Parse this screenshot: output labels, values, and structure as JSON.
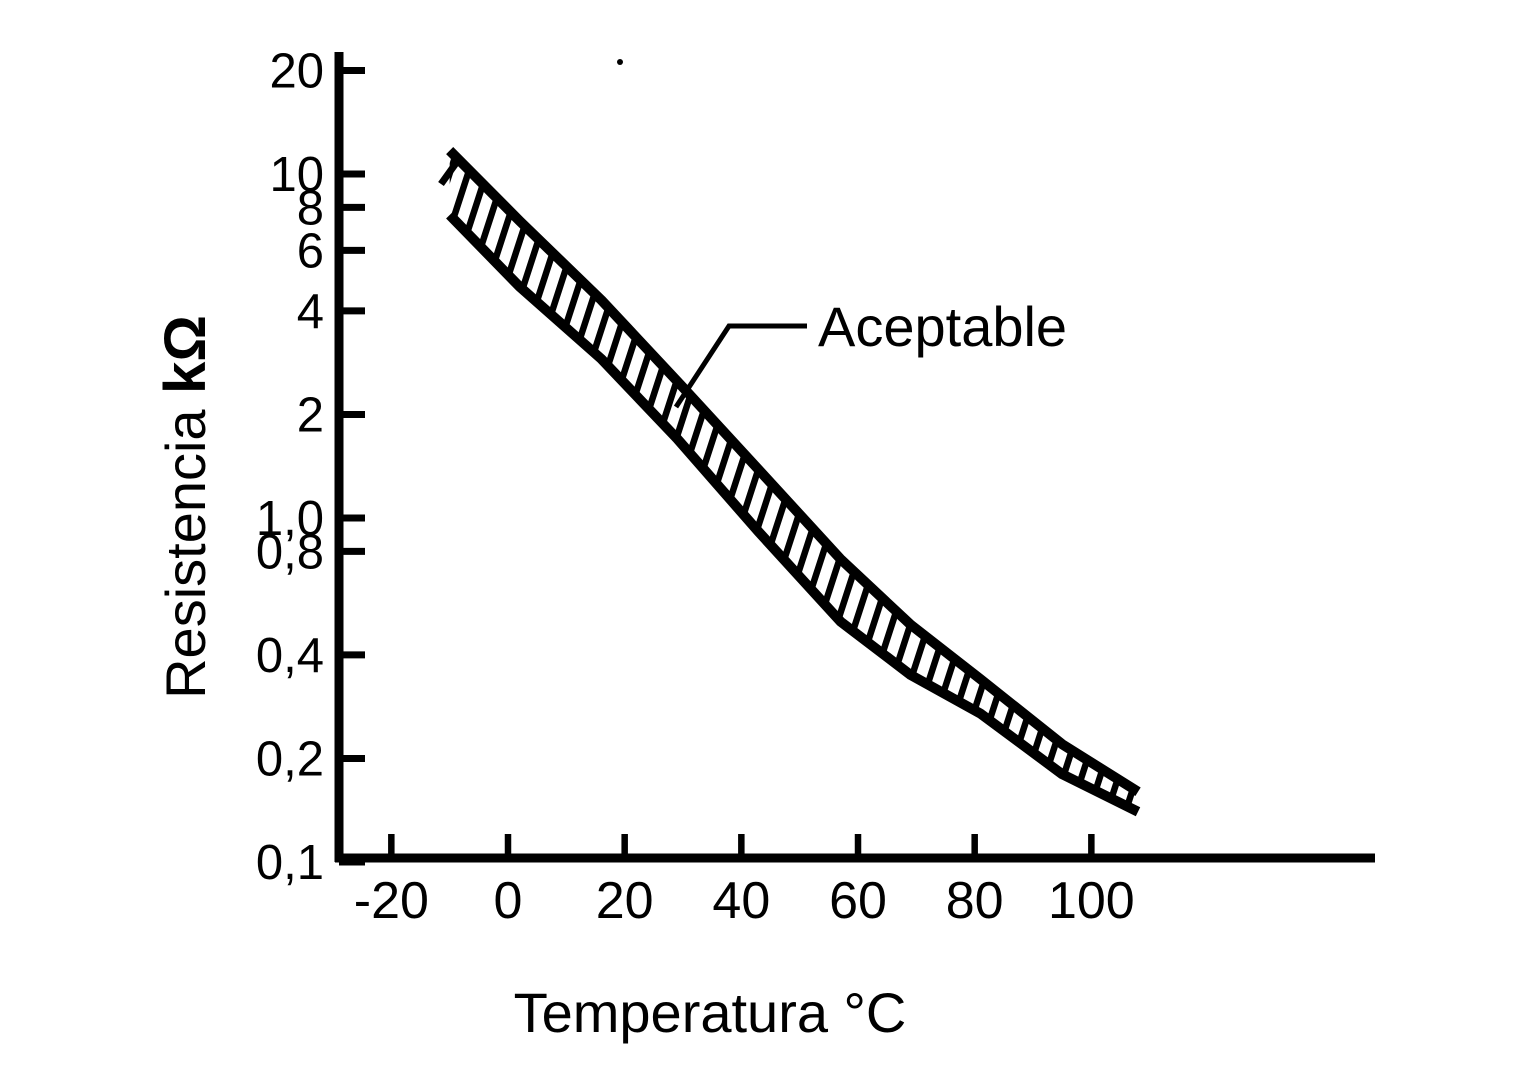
{
  "figure": {
    "background_color": "#ffffff",
    "ink_color": "#000000"
  },
  "chart_data": {
    "type": "area",
    "title": "",
    "xlabel": "Temperatura °C",
    "ylabel": "Resistencia",
    "ylabel_unit": "kΩ",
    "annotation": "Aceptable",
    "x_scale": "linear",
    "y_scale": "log",
    "xlim": [
      -30,
      149
    ],
    "ylim": [
      0.1,
      20
    ],
    "grid": false,
    "legend": "none",
    "band_fill": "diagonal-hatch",
    "x_units": "°C",
    "y_units": "kΩ",
    "x": [
      -10,
      2,
      16,
      29,
      43,
      57,
      69,
      81,
      95,
      108
    ],
    "series": [
      {
        "name": "upper_limit_kohm",
        "values": [
          11.7,
          7.3,
          4.3,
          2.5,
          1.38,
          0.76,
          0.49,
          0.34,
          0.22,
          0.16
        ]
      },
      {
        "name": "lower_limit_kohm",
        "values": [
          7.6,
          4.7,
          2.9,
          1.7,
          0.91,
          0.5,
          0.35,
          0.27,
          0.18,
          0.14
        ]
      }
    ],
    "x_ticks": [
      {
        "label": "-20",
        "value": -20
      },
      {
        "label": "0",
        "value": 0
      },
      {
        "label": "20",
        "value": 20
      },
      {
        "label": "40",
        "value": 40
      },
      {
        "label": "60",
        "value": 60
      },
      {
        "label": "80",
        "value": 80
      },
      {
        "label": "100",
        "value": 100
      }
    ],
    "y_ticks": [
      {
        "label": "20",
        "value": 20
      },
      {
        "label": "10",
        "value": 10
      },
      {
        "label": "8",
        "value": 8
      },
      {
        "label": "6",
        "value": 6
      },
      {
        "label": "4",
        "value": 4
      },
      {
        "label": "2",
        "value": 2
      },
      {
        "label": "1,0",
        "value": 1.0
      },
      {
        "label": "0,8",
        "value": 0.8
      },
      {
        "label": "0,4",
        "value": 0.4
      },
      {
        "label": "0,2",
        "value": 0.2
      },
      {
        "label": "0,1",
        "value": 0.1
      }
    ]
  }
}
